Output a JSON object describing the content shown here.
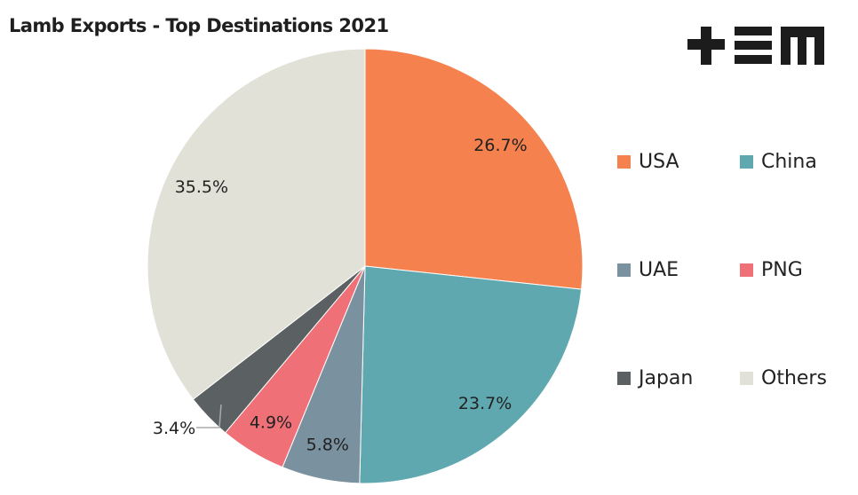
{
  "chart_data": {
    "type": "pie",
    "title": "Lamb Exports - Top Destinations 2021",
    "categories": [
      "USA",
      "China",
      "UAE",
      "PNG",
      "Japan",
      "Others"
    ],
    "values": [
      26.7,
      23.7,
      5.8,
      4.9,
      3.4,
      35.5
    ],
    "labels": [
      "26.7%",
      "23.7%",
      "5.8%",
      "4.9%",
      "3.4%",
      "35.5%"
    ],
    "colors": [
      "#f5814e",
      "#5fa8b0",
      "#7a929f",
      "#f07077",
      "#5b6063",
      "#e1e1d7"
    ],
    "legend_position": "right",
    "start_angle": "top, clockwise"
  },
  "logo": "+EM"
}
